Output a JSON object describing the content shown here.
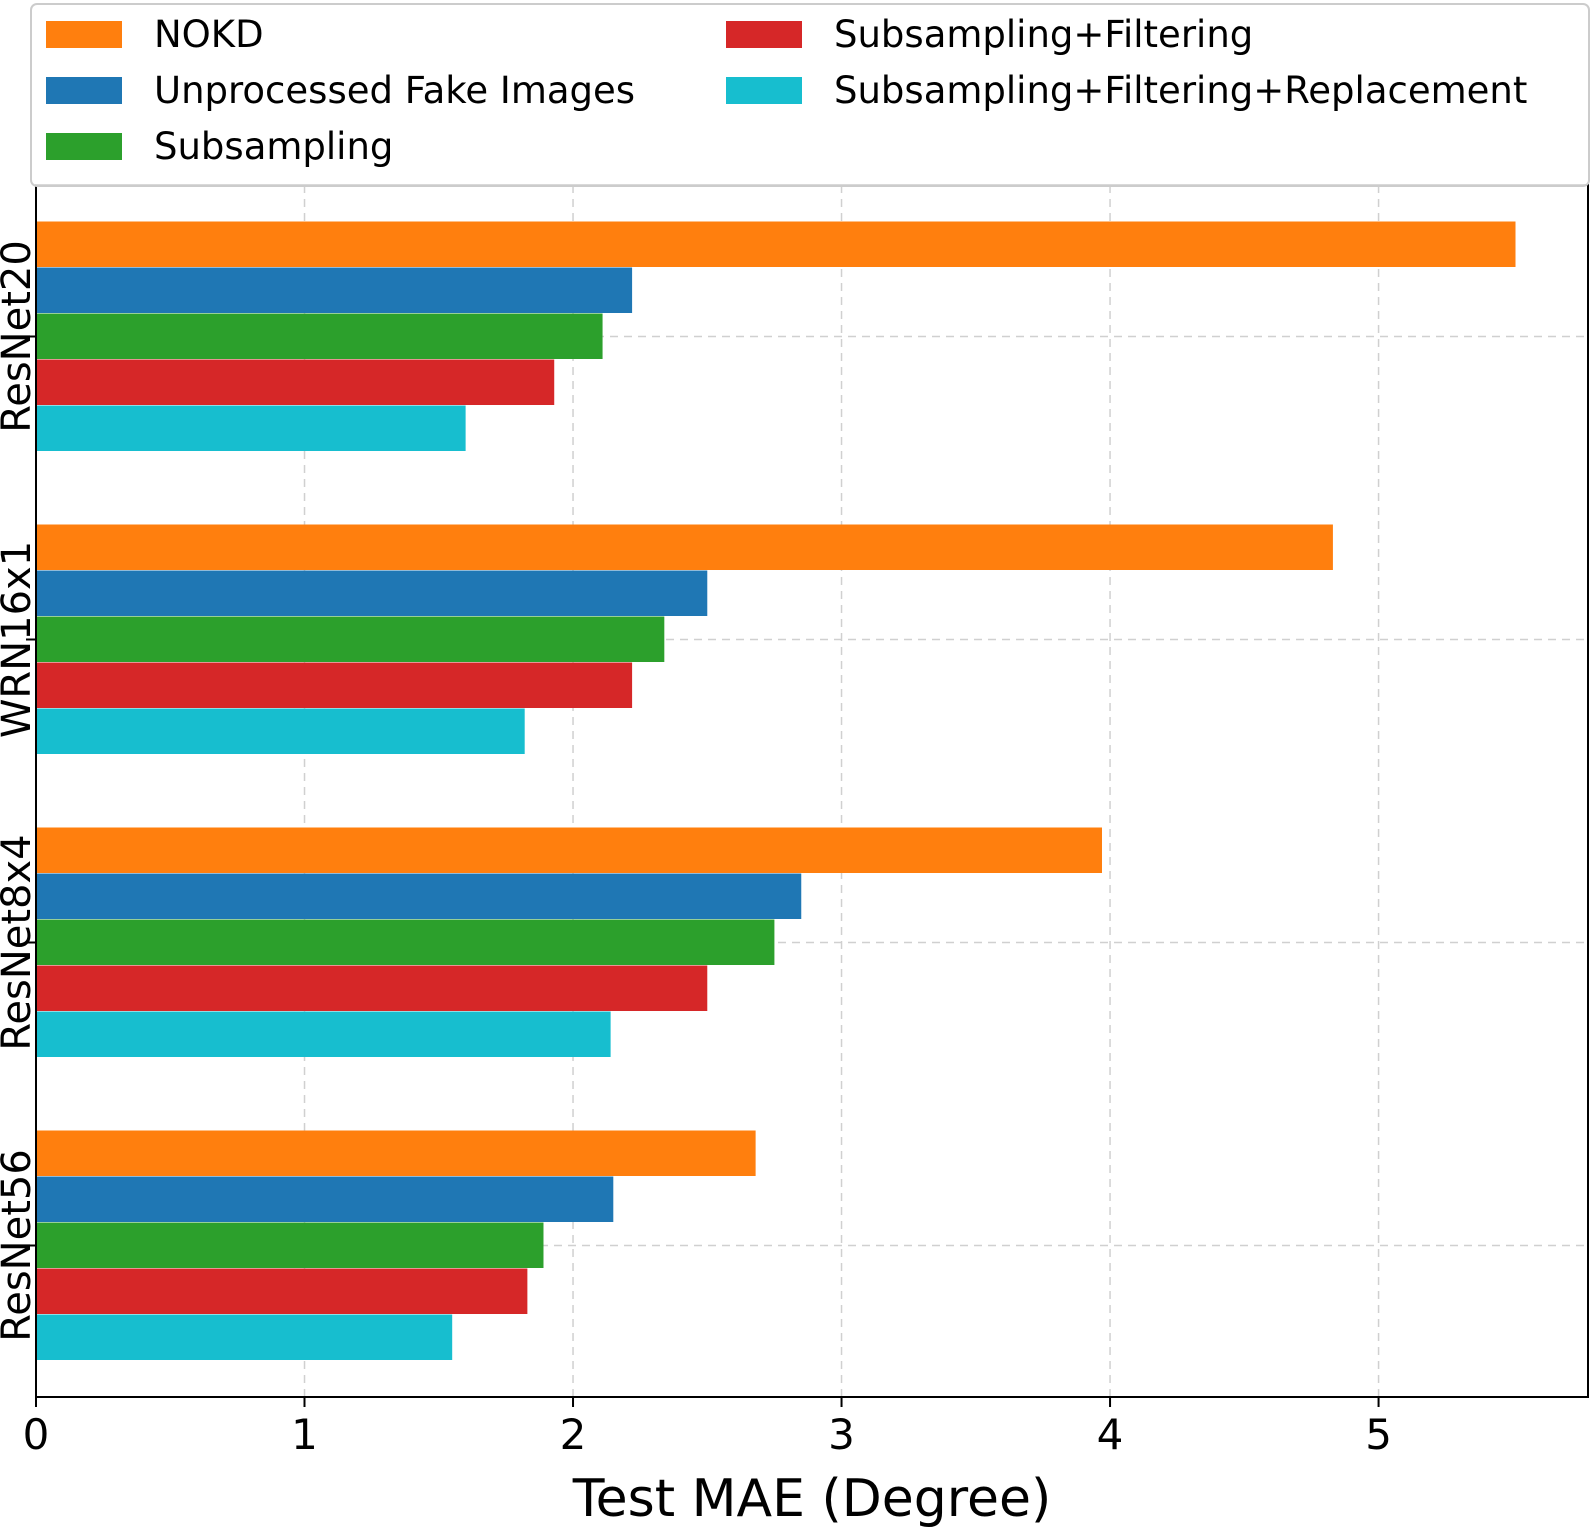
{
  "chart_data": {
    "type": "bar",
    "orientation": "horizontal",
    "xlabel": "Test MAE (Degree)",
    "ylabel": "",
    "xlim": [
      0,
      5.78
    ],
    "xticks": [
      "0",
      "1",
      "2",
      "3",
      "4",
      "5"
    ],
    "grid": true,
    "legend_position": "top",
    "categories": [
      "ResNet20",
      "WRN16x1",
      "ResNet8x4",
      "ResNet56"
    ],
    "series": [
      {
        "name": "NOKD",
        "color": "#ff7f0e",
        "values": [
          5.51,
          4.83,
          3.97,
          2.68
        ]
      },
      {
        "name": "Unprocessed Fake Images",
        "color": "#1f77b4",
        "values": [
          2.22,
          2.5,
          2.85,
          2.15
        ]
      },
      {
        "name": "Subsampling",
        "color": "#2ca02c",
        "values": [
          2.11,
          2.34,
          2.75,
          1.89
        ]
      },
      {
        "name": "Subsampling+Filtering",
        "color": "#d62728",
        "values": [
          1.93,
          2.22,
          2.5,
          1.83
        ]
      },
      {
        "name": "Subsampling+Filtering+Replacement",
        "color": "#17becf",
        "values": [
          1.6,
          1.82,
          2.14,
          1.55
        ]
      }
    ]
  }
}
